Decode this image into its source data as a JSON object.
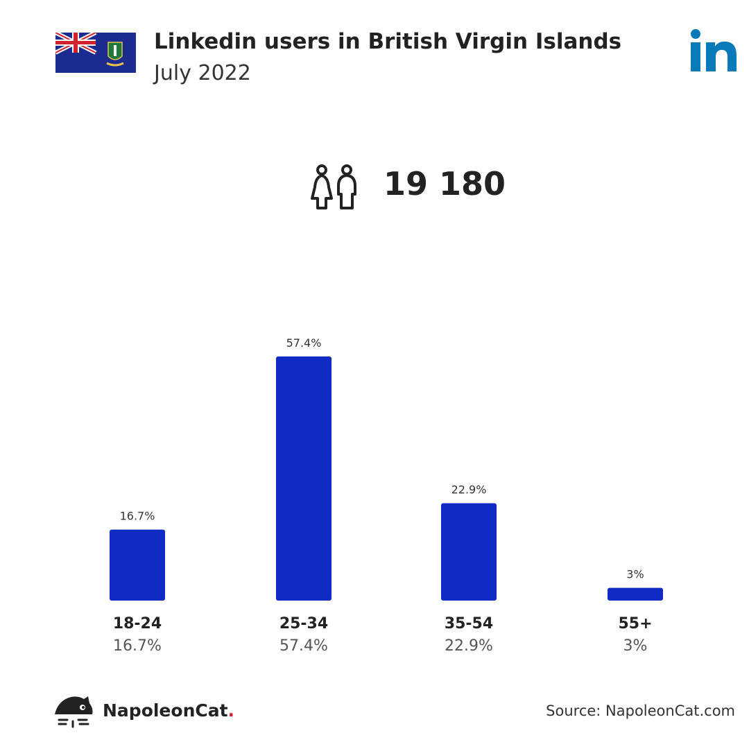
{
  "header": {
    "title": "Linkedin users in British Virgin Islands",
    "subtitle": "July 2022"
  },
  "total_users": "19 180",
  "chart_data": {
    "type": "bar",
    "categories": [
      "18-24",
      "25-34",
      "35-54",
      "55+"
    ],
    "values": [
      16.7,
      57.4,
      22.9,
      3
    ],
    "value_labels": [
      "16.7%",
      "57.4%",
      "22.9%",
      "3%"
    ],
    "unit": "%",
    "ylim": [
      0,
      57.4
    ],
    "bar_color": "#0f2bc4",
    "grid": false
  },
  "footer": {
    "brand_name": "NapoleonCat",
    "brand_dot": ".",
    "source": "Source: NapoleonCat.com"
  },
  "icons": {
    "flag": "british-virgin-islands-flag",
    "logo": "linkedin-logo",
    "users": "people-icon",
    "brand": "napoleoncat-logo"
  },
  "colors": {
    "linkedin_blue": "#0a79b8",
    "bar": "#0f2bc4",
    "brand_dot": "#e21c2c"
  }
}
